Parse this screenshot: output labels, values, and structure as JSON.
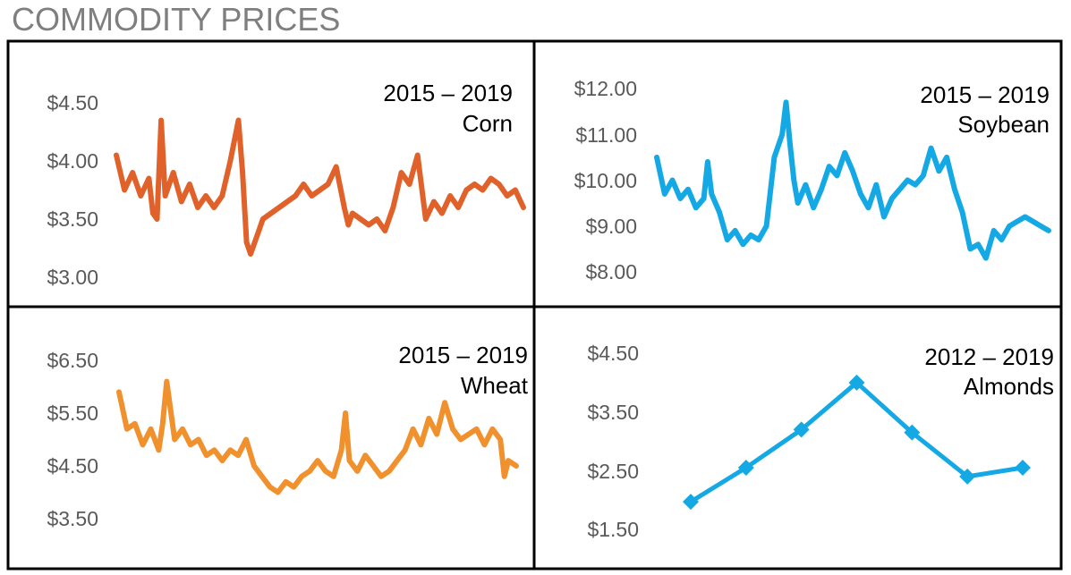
{
  "page_title": "COMMODITY PRICES",
  "chart_data": [
    {
      "type": "line",
      "title": "2015 – 2019",
      "subtitle": "Corn",
      "color": "#e0622a",
      "ylim": [
        2.9,
        4.7
      ],
      "yticks": [
        3.0,
        3.5,
        4.0,
        4.5
      ],
      "ytick_labels": [
        "$3.00",
        "$3.50",
        "$4.00",
        "$4.50"
      ],
      "x": [
        0,
        0.02,
        0.04,
        0.06,
        0.08,
        0.09,
        0.1,
        0.11,
        0.12,
        0.14,
        0.16,
        0.18,
        0.2,
        0.22,
        0.24,
        0.26,
        0.28,
        0.3,
        0.31,
        0.32,
        0.33,
        0.34,
        0.35,
        0.36,
        0.38,
        0.4,
        0.42,
        0.44,
        0.46,
        0.48,
        0.5,
        0.52,
        0.54,
        0.56,
        0.57,
        0.58,
        0.6,
        0.62,
        0.64,
        0.66,
        0.68,
        0.7,
        0.72,
        0.74,
        0.76,
        0.78,
        0.8,
        0.82,
        0.84,
        0.86,
        0.88,
        0.9,
        0.92,
        0.94,
        0.96,
        0.98,
        1.0
      ],
      "y": [
        4.05,
        3.75,
        3.9,
        3.7,
        3.85,
        3.55,
        3.5,
        4.35,
        3.7,
        3.9,
        3.65,
        3.8,
        3.6,
        3.7,
        3.6,
        3.7,
        4.0,
        4.35,
        3.9,
        3.3,
        3.2,
        3.3,
        3.4,
        3.5,
        3.55,
        3.6,
        3.65,
        3.7,
        3.8,
        3.7,
        3.75,
        3.8,
        3.95,
        3.6,
        3.45,
        3.55,
        3.5,
        3.45,
        3.5,
        3.4,
        3.6,
        3.9,
        3.8,
        4.05,
        3.5,
        3.65,
        3.55,
        3.7,
        3.6,
        3.75,
        3.8,
        3.75,
        3.85,
        3.8,
        3.7,
        3.75,
        3.6
      ]
    },
    {
      "type": "line",
      "title": "2015 – 2019",
      "subtitle": "Soybean",
      "color": "#14a9e4",
      "ylim": [
        7.8,
        12.2
      ],
      "yticks": [
        8.0,
        9.0,
        10.0,
        11.0,
        12.0
      ],
      "ytick_labels": [
        "$8.00",
        "$9.00",
        "$10.00",
        "$11.00",
        "$12.00"
      ],
      "x": [
        0,
        0.02,
        0.04,
        0.06,
        0.08,
        0.1,
        0.12,
        0.13,
        0.14,
        0.16,
        0.18,
        0.2,
        0.22,
        0.24,
        0.26,
        0.28,
        0.3,
        0.32,
        0.33,
        0.34,
        0.35,
        0.36,
        0.38,
        0.4,
        0.42,
        0.44,
        0.46,
        0.48,
        0.5,
        0.52,
        0.54,
        0.56,
        0.58,
        0.6,
        0.62,
        0.64,
        0.66,
        0.68,
        0.7,
        0.72,
        0.74,
        0.76,
        0.78,
        0.8,
        0.82,
        0.84,
        0.86,
        0.88,
        0.9,
        0.92,
        0.94,
        0.96,
        0.98,
        1.0
      ],
      "y": [
        10.5,
        9.7,
        10.0,
        9.6,
        9.8,
        9.4,
        9.6,
        10.4,
        9.7,
        9.3,
        8.7,
        8.9,
        8.6,
        8.8,
        8.7,
        9.0,
        10.5,
        11.0,
        11.7,
        10.8,
        10.0,
        9.5,
        9.9,
        9.4,
        9.8,
        10.3,
        10.1,
        10.6,
        10.2,
        9.7,
        9.4,
        9.9,
        9.2,
        9.6,
        9.8,
        10.0,
        9.9,
        10.1,
        10.7,
        10.2,
        10.5,
        9.8,
        9.3,
        8.5,
        8.6,
        8.3,
        8.9,
        8.7,
        9.0,
        9.1,
        9.2,
        9.1,
        9.0,
        8.9
      ]
    },
    {
      "type": "line",
      "title": "2015 – 2019",
      "subtitle": "Wheat",
      "color": "#f0912e",
      "ylim": [
        3.4,
        6.7
      ],
      "yticks": [
        3.5,
        4.5,
        5.5,
        6.5
      ],
      "ytick_labels": [
        "$3.50",
        "$4.50",
        "$5.50",
        "$6.50"
      ],
      "x": [
        0,
        0.02,
        0.04,
        0.06,
        0.08,
        0.1,
        0.11,
        0.12,
        0.14,
        0.16,
        0.18,
        0.2,
        0.22,
        0.24,
        0.26,
        0.28,
        0.3,
        0.32,
        0.34,
        0.36,
        0.38,
        0.4,
        0.42,
        0.44,
        0.46,
        0.48,
        0.5,
        0.52,
        0.54,
        0.56,
        0.57,
        0.58,
        0.6,
        0.62,
        0.64,
        0.66,
        0.68,
        0.7,
        0.72,
        0.74,
        0.76,
        0.78,
        0.8,
        0.82,
        0.84,
        0.86,
        0.88,
        0.9,
        0.92,
        0.94,
        0.96,
        0.97,
        0.98,
        1.0
      ],
      "y": [
        5.9,
        5.2,
        5.3,
        4.9,
        5.2,
        4.8,
        5.3,
        6.1,
        5.0,
        5.2,
        4.9,
        5.0,
        4.7,
        4.8,
        4.6,
        4.8,
        4.7,
        5.0,
        4.5,
        4.3,
        4.1,
        4.0,
        4.2,
        4.1,
        4.3,
        4.4,
        4.6,
        4.4,
        4.3,
        4.8,
        5.5,
        4.6,
        4.4,
        4.7,
        4.5,
        4.3,
        4.4,
        4.6,
        4.8,
        5.2,
        4.9,
        5.4,
        5.1,
        5.7,
        5.2,
        5.0,
        5.1,
        5.2,
        4.9,
        5.2,
        5.0,
        4.3,
        4.6,
        4.5
      ]
    },
    {
      "type": "line",
      "title": "2012 – 2019",
      "subtitle": "Almonds",
      "color": "#14a9e4",
      "markers": true,
      "ylim": [
        1.3,
        4.7
      ],
      "yticks": [
        1.5,
        2.5,
        3.5,
        4.5
      ],
      "ytick_labels": [
        "$1.50",
        "$2.50",
        "$3.50",
        "$4.50"
      ],
      "x": [
        2012,
        2013,
        2014,
        2015,
        2016,
        2017,
        2018
      ],
      "y": [
        1.97,
        2.55,
        3.2,
        4.0,
        3.15,
        2.4,
        2.55
      ]
    }
  ]
}
